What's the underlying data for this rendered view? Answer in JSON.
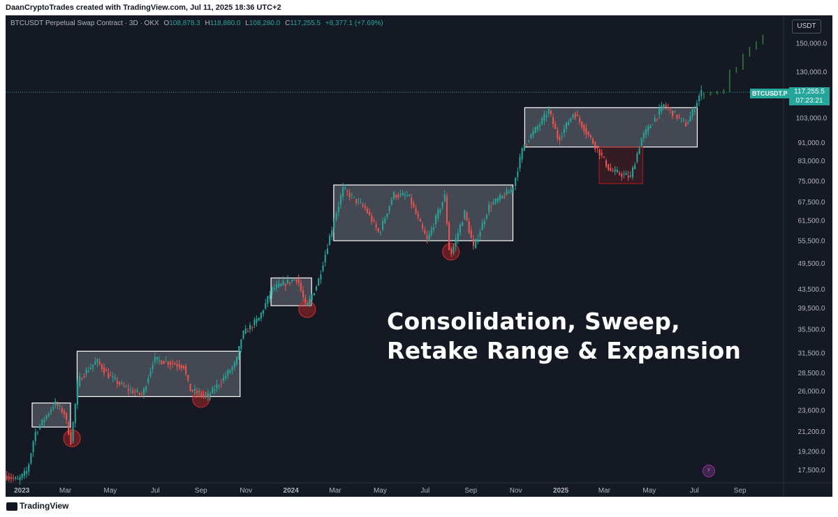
{
  "header": {
    "credit": "DaanCryptoTrades created with TradingView.com, Jul 11, 2025 18:36 UTC+2"
  },
  "instrument": {
    "title": "BTCUSDT Perpetual Swap Contract · 3D · OKX",
    "open_label": "O",
    "open": "108,878.3",
    "high_label": "H",
    "high": "118,880.0",
    "low_label": "L",
    "low": "108,280.0",
    "close_label": "C",
    "close": "117,255.5",
    "change": "+8,377.1 (+7.69%)"
  },
  "currency": "USDT",
  "annotation": {
    "line1": "Consolidation, Sweep,",
    "line2": "Retake Range & Expansion"
  },
  "last_price": {
    "symbol": "BTCUSDT.P",
    "price": "117,255.5",
    "countdown": "07:23:21"
  },
  "footer": {
    "brand": "TradingView"
  },
  "colors": {
    "background": "#151924",
    "up": "#26a69a",
    "down": "#ef5350",
    "range_box": "#ffffff",
    "sweep_circle": "#c62828"
  },
  "chart_data": {
    "type": "candlestick",
    "scale": "log",
    "ylim": [
      16500,
      168000
    ],
    "y_ticks": [
      150000,
      130000,
      103000,
      91000,
      83000,
      75000,
      67500,
      61500,
      55500,
      49500,
      43500,
      39500,
      35500,
      31500,
      28500,
      26000,
      23600,
      21200,
      19200,
      17500
    ],
    "y_tick_labels": [
      "150,000.0",
      "130,000.0",
      "103,000.0",
      "91,000.0",
      "83,000.0",
      "75,000.0",
      "67,500.0",
      "61,500.0",
      "55,500.0",
      "49,500.0",
      "43,500.0",
      "39,500.0",
      "35,500.0",
      "31,500.0",
      "28,500.0",
      "26,000.0",
      "23,600.0",
      "21,200.0",
      "19,200.0",
      "17,500.0"
    ],
    "x_ticks": [
      {
        "label": "2023",
        "date": "2023-01-01",
        "bold": true
      },
      {
        "label": "Mar",
        "date": "2023-03-01"
      },
      {
        "label": "May",
        "date": "2023-05-01"
      },
      {
        "label": "Jul",
        "date": "2023-07-01"
      },
      {
        "label": "Sep",
        "date": "2023-09-01"
      },
      {
        "label": "Nov",
        "date": "2023-11-01"
      },
      {
        "label": "2024",
        "date": "2024-01-01",
        "bold": true
      },
      {
        "label": "Mar",
        "date": "2024-03-01"
      },
      {
        "label": "May",
        "date": "2024-05-01"
      },
      {
        "label": "Jul",
        "date": "2024-07-01"
      },
      {
        "label": "Sep",
        "date": "2024-09-01"
      },
      {
        "label": "Nov",
        "date": "2024-11-01"
      },
      {
        "label": "2025",
        "date": "2025-01-01",
        "bold": true
      },
      {
        "label": "Mar",
        "date": "2025-03-01"
      },
      {
        "label": "May",
        "date": "2025-05-01"
      },
      {
        "label": "Jul",
        "date": "2025-07-01"
      },
      {
        "label": "Sep",
        "date": "2025-09-01"
      }
    ],
    "xlim": [
      "2022-12-10",
      "2025-10-30"
    ],
    "price_path": [
      [
        "2022-12-10",
        17000
      ],
      [
        "2022-12-28",
        16600
      ],
      [
        "2023-01-10",
        17400
      ],
      [
        "2023-01-20",
        21000
      ],
      [
        "2023-02-05",
        23000
      ],
      [
        "2023-02-16",
        24500
      ],
      [
        "2023-03-01",
        23300
      ],
      [
        "2023-03-10",
        20200
      ],
      [
        "2023-03-20",
        27500
      ],
      [
        "2023-04-14",
        30300
      ],
      [
        "2023-05-01",
        28000
      ],
      [
        "2023-05-25",
        26300
      ],
      [
        "2023-06-15",
        25500
      ],
      [
        "2023-06-30",
        30500
      ],
      [
        "2023-07-15",
        30200
      ],
      [
        "2023-08-10",
        29500
      ],
      [
        "2023-08-18",
        26200
      ],
      [
        "2023-09-11",
        25300
      ],
      [
        "2023-10-01",
        27500
      ],
      [
        "2023-10-20",
        30000
      ],
      [
        "2023-10-28",
        34500
      ],
      [
        "2023-11-20",
        37500
      ],
      [
        "2023-12-08",
        43500
      ],
      [
        "2024-01-11",
        46000
      ],
      [
        "2024-01-23",
        39500
      ],
      [
        "2024-02-08",
        45000
      ],
      [
        "2024-02-28",
        60000
      ],
      [
        "2024-03-13",
        72000
      ],
      [
        "2024-04-13",
        65000
      ],
      [
        "2024-05-01",
        57500
      ],
      [
        "2024-05-20",
        70000
      ],
      [
        "2024-06-10",
        69500
      ],
      [
        "2024-07-05",
        55500
      ],
      [
        "2024-07-29",
        69500
      ],
      [
        "2024-08-05",
        51000
      ],
      [
        "2024-08-25",
        64000
      ],
      [
        "2024-09-06",
        53500
      ],
      [
        "2024-09-27",
        66000
      ],
      [
        "2024-10-29",
        72000
      ],
      [
        "2024-11-13",
        90000
      ],
      [
        "2024-12-05",
        100000
      ],
      [
        "2024-12-17",
        107000
      ],
      [
        "2024-12-30",
        92500
      ],
      [
        "2025-01-20",
        106000
      ],
      [
        "2025-02-25",
        86000
      ],
      [
        "2025-03-10",
        79000
      ],
      [
        "2025-04-07",
        76500
      ],
      [
        "2025-04-22",
        93000
      ],
      [
        "2025-05-22",
        110000
      ],
      [
        "2025-06-22",
        99500
      ],
      [
        "2025-07-03",
        109000
      ],
      [
        "2025-07-11",
        117255
      ]
    ],
    "range_boxes": [
      {
        "start": "2023-01-15",
        "end": "2023-03-08",
        "low": 21700,
        "high": 24500
      },
      {
        "start": "2023-03-17",
        "end": "2023-10-24",
        "low": 25300,
        "high": 31800
      },
      {
        "start": "2023-12-05",
        "end": "2024-01-29",
        "low": 40000,
        "high": 46000
      },
      {
        "start": "2024-02-28",
        "end": "2024-10-28",
        "low": 55500,
        "high": 73500
      },
      {
        "start": "2024-11-13",
        "end": "2025-07-05",
        "low": 89000,
        "high": 108500
      }
    ],
    "deviation_box": {
      "start": "2025-02-22",
      "end": "2025-04-22",
      "low": 74000,
      "high": 89000
    },
    "sweep_circles": [
      {
        "date": "2023-03-10",
        "price": 20500
      },
      {
        "date": "2023-09-01",
        "price": 25000
      },
      {
        "date": "2024-01-23",
        "price": 39300
      },
      {
        "date": "2024-08-05",
        "price": 52500
      }
    ],
    "projection": [
      [
        "2025-07-14",
        116000
      ],
      [
        "2025-07-23",
        116500
      ],
      [
        "2025-08-01",
        117000
      ],
      [
        "2025-08-10",
        118000
      ],
      [
        "2025-08-18",
        130000
      ],
      [
        "2025-08-27",
        132000
      ],
      [
        "2025-09-05",
        141000
      ],
      [
        "2025-09-14",
        146000
      ],
      [
        "2025-09-23",
        150000
      ],
      [
        "2025-10-02",
        155000
      ]
    ]
  }
}
